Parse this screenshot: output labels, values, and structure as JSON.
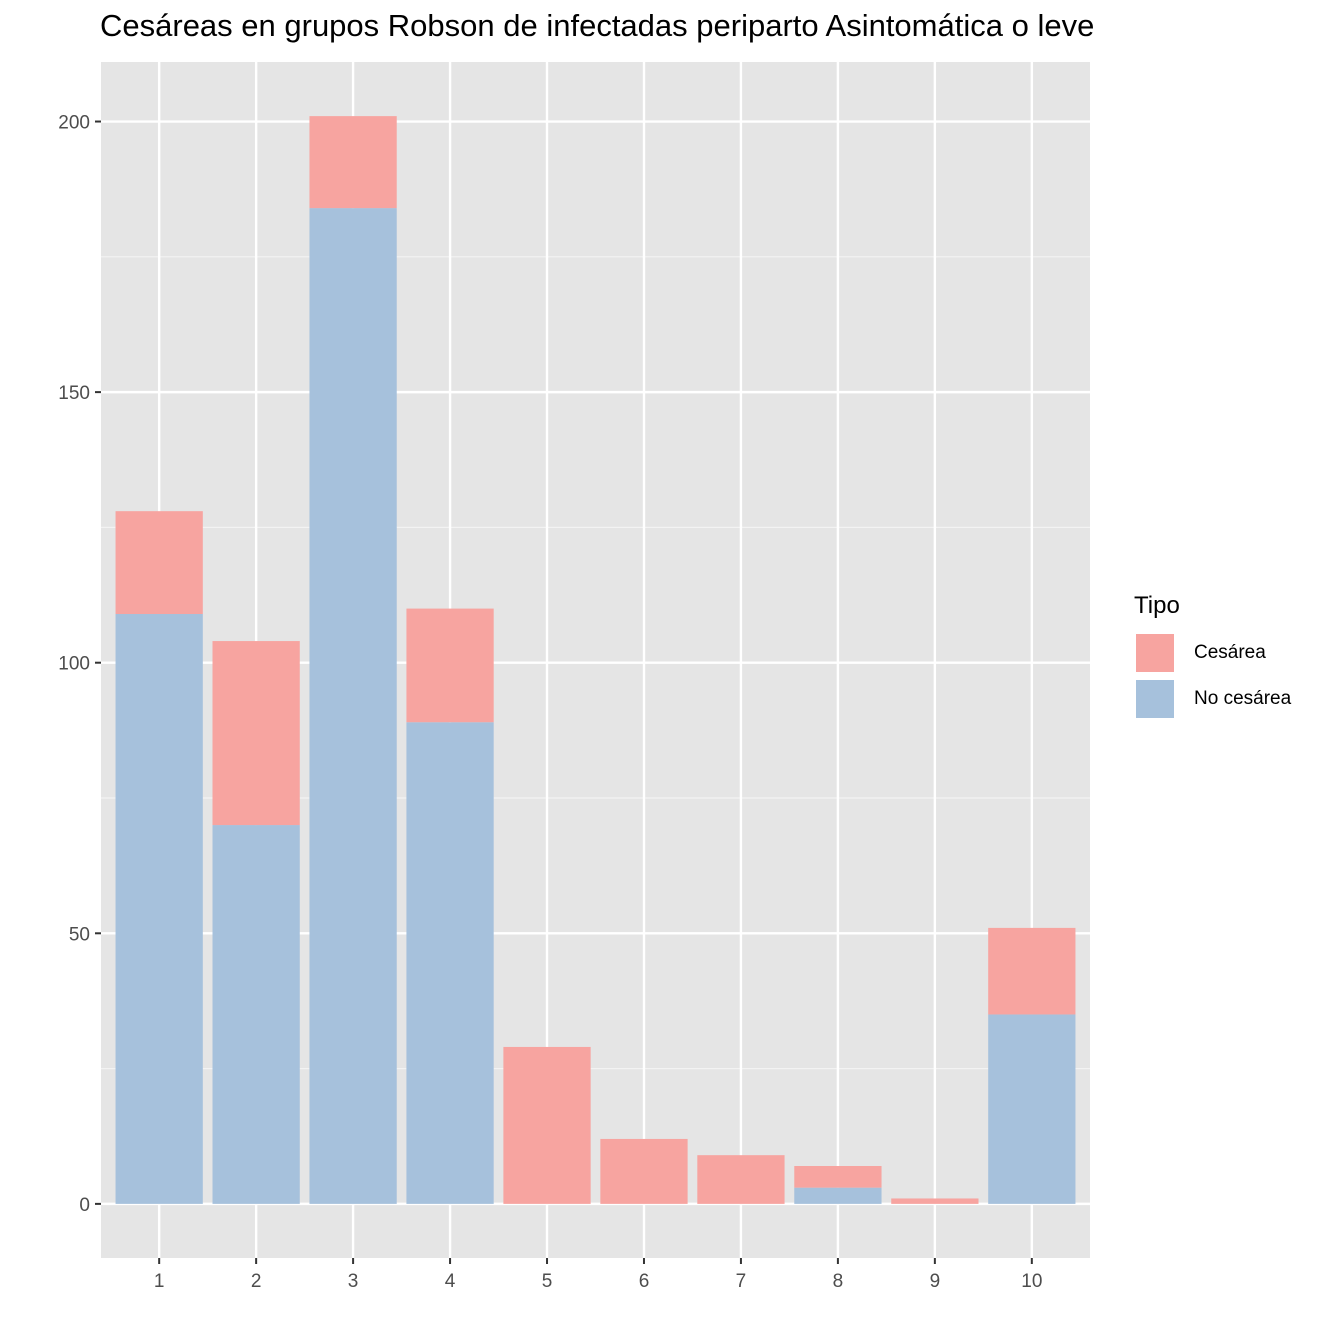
{
  "chart_data": {
    "type": "bar",
    "stacked": true,
    "title": "Cesáreas en grupos Robson de infectadas periparto Asintomática o leve",
    "xlabel": "",
    "ylabel": "",
    "categories": [
      "1",
      "2",
      "3",
      "4",
      "5",
      "6",
      "7",
      "8",
      "9",
      "10"
    ],
    "series": [
      {
        "name": "No cesárea",
        "color": "#a6c1dc",
        "values": [
          109,
          70,
          184,
          89,
          0,
          0,
          0,
          3,
          0,
          35
        ]
      },
      {
        "name": "Cesárea",
        "color": "#f7a4a0",
        "values": [
          19,
          34,
          17,
          21,
          29,
          12,
          9,
          4,
          1,
          16
        ]
      }
    ],
    "ylim": [
      -10,
      211
    ],
    "yticks": [
      0,
      50,
      100,
      150,
      200
    ],
    "grid": true,
    "legend": {
      "title": "Tipo",
      "position": "right",
      "entries": [
        "Cesárea",
        "No cesárea"
      ]
    }
  }
}
